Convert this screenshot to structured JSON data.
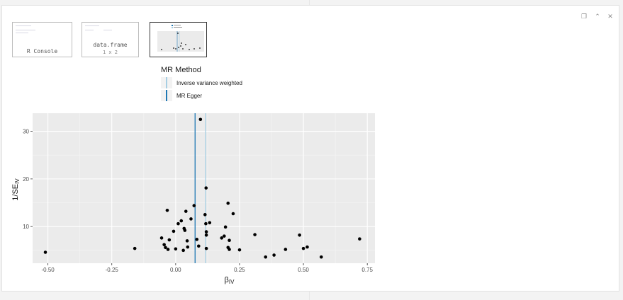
{
  "thumbnails": [
    {
      "caption_1": "R Console",
      "caption_2": ""
    },
    {
      "caption_1": "data.frame",
      "caption_2": "1 x 2"
    },
    {
      "caption_1": "",
      "caption_2": ""
    }
  ],
  "window_controls": [
    "restore-icon",
    "collapse-icon",
    "close-icon"
  ],
  "colors": {
    "ivw": "#a6cee3",
    "egger": "#1f78b4",
    "panel": "#ebebeb",
    "grid": "#ffffff"
  },
  "legend": {
    "title": "MR Method",
    "items": [
      {
        "label": "Inverse variance weighted",
        "color": "#a6cee3"
      },
      {
        "label": "MR Egger",
        "color": "#1f78b4"
      }
    ]
  },
  "chart_data": {
    "type": "scatter",
    "xlabel": "β",
    "xlabel_sub": "IV",
    "ylabel": "1/SE",
    "ylabel_sub": "IV",
    "xlim": [
      -0.56,
      0.78
    ],
    "ylim": [
      2.3,
      33.8
    ],
    "xticks": [
      -0.5,
      -0.25,
      0.0,
      0.25,
      0.5,
      0.75
    ],
    "xtick_labels": [
      "-0.50",
      "-0.25",
      "0.00",
      "0.25",
      "0.50",
      "0.75"
    ],
    "yticks": [
      10,
      20,
      30
    ],
    "ytick_labels": [
      "10",
      "20",
      "30"
    ],
    "grid": true,
    "vlines": [
      {
        "method": "Inverse variance weighted",
        "x": 0.117
      },
      {
        "method": "MR Egger",
        "x": 0.076
      }
    ],
    "points": [
      {
        "x": -0.51,
        "y": 4.6
      },
      {
        "x": -0.16,
        "y": 5.4
      },
      {
        "x": -0.055,
        "y": 7.6
      },
      {
        "x": -0.045,
        "y": 6.2
      },
      {
        "x": -0.04,
        "y": 5.6
      },
      {
        "x": -0.033,
        "y": 13.4
      },
      {
        "x": -0.025,
        "y": 7.2
      },
      {
        "x": -0.03,
        "y": 5.2
      },
      {
        "x": 0.0,
        "y": 5.3
      },
      {
        "x": -0.008,
        "y": 9.0
      },
      {
        "x": 0.01,
        "y": 10.6
      },
      {
        "x": 0.022,
        "y": 11.2
      },
      {
        "x": 0.033,
        "y": 9.6
      },
      {
        "x": 0.036,
        "y": 9.2
      },
      {
        "x": 0.04,
        "y": 13.2
      },
      {
        "x": 0.03,
        "y": 5.0
      },
      {
        "x": 0.045,
        "y": 7.0
      },
      {
        "x": 0.047,
        "y": 5.7
      },
      {
        "x": 0.06,
        "y": 11.6
      },
      {
        "x": 0.072,
        "y": 14.4
      },
      {
        "x": 0.083,
        "y": 7.3
      },
      {
        "x": 0.09,
        "y": 5.9
      },
      {
        "x": 0.097,
        "y": 32.5
      },
      {
        "x": 0.115,
        "y": 12.5
      },
      {
        "x": 0.118,
        "y": 10.6
      },
      {
        "x": 0.119,
        "y": 18.1
      },
      {
        "x": 0.12,
        "y": 8.9
      },
      {
        "x": 0.12,
        "y": 8.2
      },
      {
        "x": 0.12,
        "y": 5.4
      },
      {
        "x": 0.133,
        "y": 10.8
      },
      {
        "x": 0.18,
        "y": 7.6
      },
      {
        "x": 0.19,
        "y": 8.0
      },
      {
        "x": 0.195,
        "y": 9.9
      },
      {
        "x": 0.205,
        "y": 14.9
      },
      {
        "x": 0.205,
        "y": 5.6
      },
      {
        "x": 0.21,
        "y": 7.1
      },
      {
        "x": 0.21,
        "y": 5.2
      },
      {
        "x": 0.225,
        "y": 12.7
      },
      {
        "x": 0.25,
        "y": 5.1
      },
      {
        "x": 0.31,
        "y": 8.3
      },
      {
        "x": 0.352,
        "y": 3.6
      },
      {
        "x": 0.385,
        "y": 4.0
      },
      {
        "x": 0.43,
        "y": 5.2
      },
      {
        "x": 0.485,
        "y": 8.2
      },
      {
        "x": 0.5,
        "y": 5.4
      },
      {
        "x": 0.515,
        "y": 5.7
      },
      {
        "x": 0.57,
        "y": 3.6
      },
      {
        "x": 0.72,
        "y": 7.4
      }
    ]
  }
}
